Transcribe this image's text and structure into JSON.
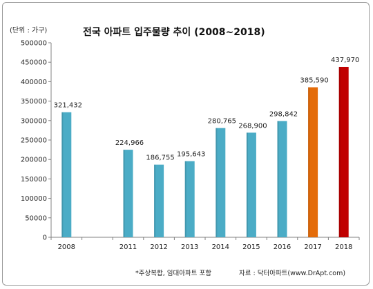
{
  "unit_label": "(단위 : 가구)",
  "footnote": "*주상복합, 임대아파트 포함",
  "source": "자료 : 닥터아파트(www.DrApt.com)",
  "chart_data": {
    "type": "bar",
    "title": "전국 아파트 입주물량 추이 (2008~2018)",
    "categories": [
      "2008",
      "",
      "2011",
      "2012",
      "2013",
      "2014",
      "2015",
      "2016",
      "2017",
      "2018"
    ],
    "values": [
      321432,
      null,
      224966,
      186755,
      195643,
      280765,
      268900,
      298842,
      385590,
      437970
    ],
    "data_labels": [
      "321,432",
      "",
      "224,966",
      "186,755",
      "195,643",
      "280,765",
      "268,900",
      "298,842",
      "385,590",
      "437,970"
    ],
    "colors": [
      "#4bacc6",
      "#4bacc6",
      "#4bacc6",
      "#4bacc6",
      "#4bacc6",
      "#4bacc6",
      "#4bacc6",
      "#4bacc6",
      "#e46c0a",
      "#c00000"
    ],
    "ylim": [
      0,
      500000
    ],
    "yticks": [
      "0",
      "50000",
      "100000",
      "150000",
      "200000",
      "250000",
      "300000",
      "350000",
      "400000",
      "450000",
      "500000"
    ],
    "grid": false,
    "legend": "none"
  }
}
